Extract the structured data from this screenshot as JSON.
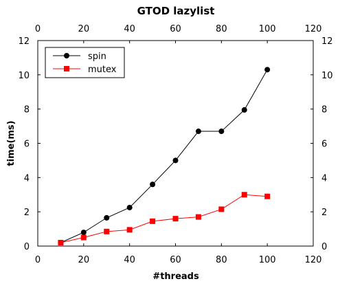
{
  "chart_data": {
    "type": "line",
    "title": "GTOD lazylist",
    "xlabel": "#threads",
    "ylabel": "time(ms)",
    "xlim": [
      0,
      120
    ],
    "ylim": [
      0,
      12
    ],
    "x_ticks": [
      "0",
      "20",
      "40",
      "60",
      "80",
      "100",
      "120"
    ],
    "y_ticks": [
      "0",
      "2",
      "4",
      "6",
      "8",
      "10",
      "12"
    ],
    "grid": false,
    "legend_position": "top-left",
    "x": [
      10,
      20,
      30,
      40,
      50,
      60,
      70,
      80,
      90,
      100
    ],
    "series": [
      {
        "name": "spin",
        "color": "#000000",
        "marker": "circle",
        "values": [
          0.2,
          0.8,
          1.65,
          2.25,
          3.6,
          5.0,
          6.7,
          6.7,
          7.95,
          10.3
        ]
      },
      {
        "name": "mutex",
        "color": "#ff0000",
        "marker": "square",
        "values": [
          0.2,
          0.5,
          0.85,
          0.95,
          1.45,
          1.6,
          1.7,
          2.15,
          3.0,
          2.9
        ]
      }
    ]
  }
}
